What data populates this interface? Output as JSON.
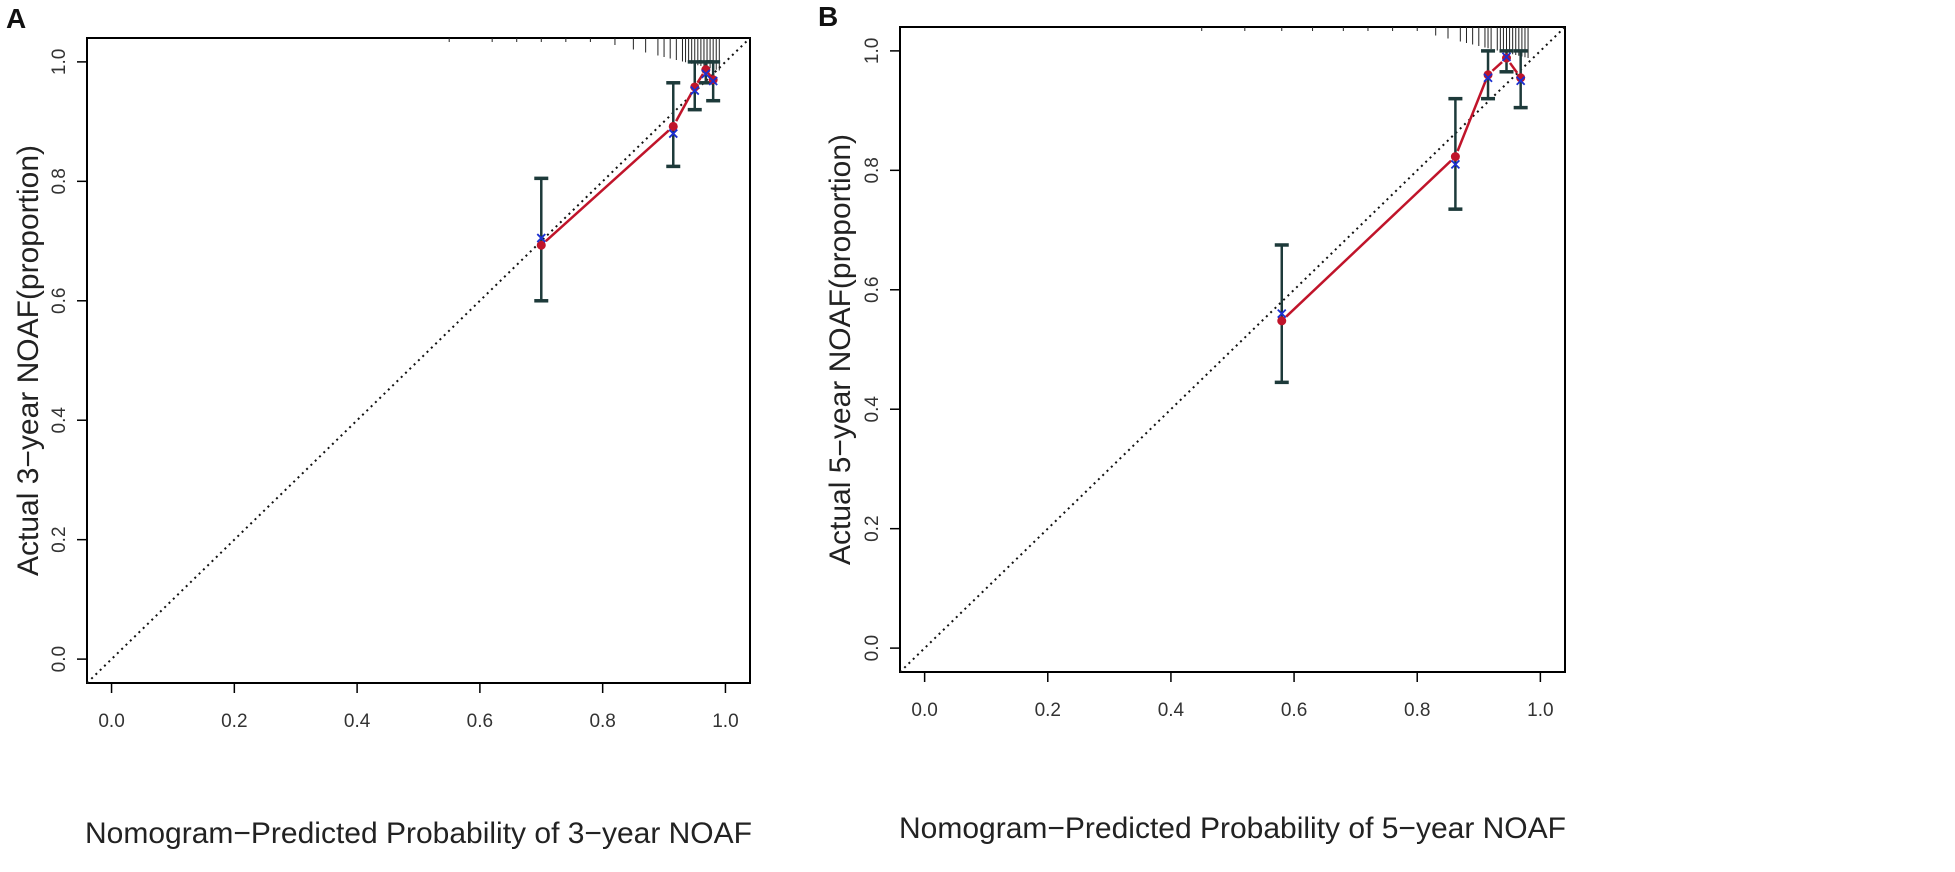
{
  "chart_data": [
    {
      "type": "scatter",
      "panel_label": "A",
      "title": "",
      "xlabel": "Nomogram−Predicted Probability of 3−year NOAF",
      "ylabel": "Actual 3−year NOAF(proportion)",
      "xlim": [
        -0.04,
        1.04
      ],
      "ylim": [
        -0.04,
        1.04
      ],
      "xticks": [
        "0.0",
        "0.2",
        "0.4",
        "0.6",
        "0.8",
        "1.0"
      ],
      "yticks": [
        "0.0",
        "0.2",
        "0.4",
        "0.6",
        "0.8",
        "1.0"
      ],
      "reference_line": "ideal (dotted diagonal)",
      "series": [
        {
          "name": "observed",
          "color": "#c0142a",
          "marker": "dot"
        },
        {
          "name": "bias-corrected",
          "color": "#1a2fd0",
          "marker": "x"
        },
        {
          "name": "95% CI",
          "color": "#1d3a3a"
        }
      ],
      "points": [
        {
          "predicted": 0.7,
          "observed": 0.693,
          "corrected": 0.705,
          "ci_low": 0.6,
          "ci_high": 0.805
        },
        {
          "predicted": 0.915,
          "observed": 0.892,
          "corrected": 0.88,
          "ci_low": 0.825,
          "ci_high": 0.965
        },
        {
          "predicted": 0.95,
          "observed": 0.958,
          "corrected": 0.952,
          "ci_low": 0.92,
          "ci_high": 1.0
        },
        {
          "predicted": 0.968,
          "observed": 0.987,
          "corrected": 0.98,
          "ci_low": 0.965,
          "ci_high": 1.0
        },
        {
          "predicted": 0.98,
          "observed": 0.97,
          "corrected": 0.968,
          "ci_low": 0.935,
          "ci_high": 1.0
        }
      ],
      "rug": [
        0.55,
        0.62,
        0.66,
        0.7,
        0.74,
        0.78,
        0.82,
        0.85,
        0.87,
        0.89,
        0.9,
        0.91,
        0.92,
        0.93,
        0.935,
        0.94,
        0.945,
        0.95,
        0.955,
        0.96,
        0.965,
        0.97,
        0.975,
        0.98,
        0.985,
        0.99
      ]
    },
    {
      "type": "scatter",
      "panel_label": "B",
      "title": "",
      "xlabel": "Nomogram−Predicted Probability of 5−year NOAF",
      "ylabel": "Actual 5−year NOAF(proportion)",
      "xlim": [
        -0.04,
        1.04
      ],
      "ylim": [
        -0.04,
        1.04
      ],
      "xticks": [
        "0.0",
        "0.2",
        "0.4",
        "0.6",
        "0.8",
        "1.0"
      ],
      "yticks": [
        "0.0",
        "0.2",
        "0.4",
        "0.6",
        "0.8",
        "1.0"
      ],
      "reference_line": "ideal (dotted diagonal)",
      "series": [
        {
          "name": "observed",
          "color": "#c0142a",
          "marker": "dot"
        },
        {
          "name": "bias-corrected",
          "color": "#1a2fd0",
          "marker": "x"
        },
        {
          "name": "95% CI",
          "color": "#1d3a3a"
        }
      ],
      "points": [
        {
          "predicted": 0.58,
          "observed": 0.548,
          "corrected": 0.56,
          "ci_low": 0.445,
          "ci_high": 0.675
        },
        {
          "predicted": 0.862,
          "observed": 0.823,
          "corrected": 0.81,
          "ci_low": 0.735,
          "ci_high": 0.92
        },
        {
          "predicted": 0.915,
          "observed": 0.96,
          "corrected": 0.955,
          "ci_low": 0.92,
          "ci_high": 1.0
        },
        {
          "predicted": 0.945,
          "observed": 0.988,
          "corrected": 0.99,
          "ci_low": 0.965,
          "ci_high": 1.0
        },
        {
          "predicted": 0.968,
          "observed": 0.955,
          "corrected": 0.95,
          "ci_low": 0.905,
          "ci_high": 1.0
        }
      ],
      "rug": [
        0.45,
        0.52,
        0.58,
        0.63,
        0.68,
        0.72,
        0.76,
        0.8,
        0.83,
        0.85,
        0.87,
        0.88,
        0.89,
        0.9,
        0.91,
        0.915,
        0.92,
        0.93,
        0.935,
        0.94,
        0.945,
        0.95,
        0.955,
        0.96,
        0.965,
        0.97,
        0.975,
        0.98
      ]
    }
  ]
}
